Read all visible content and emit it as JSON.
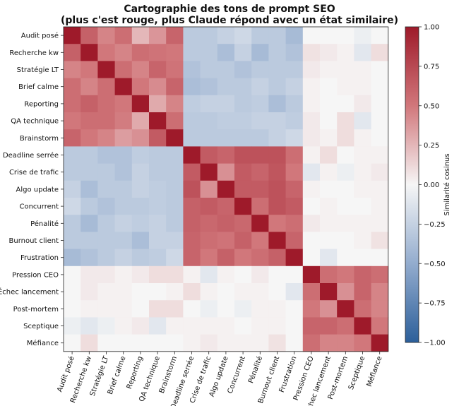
{
  "chart_data": {
    "type": "heatmap",
    "title_line1": "Cartographie des tons de prompt SEO",
    "title_line2": "(plus c'est rouge, plus Claude répond avec un état similaire)",
    "labels": [
      "Audit posé",
      "Recherche kw",
      "Stratégie LT",
      "Brief calme",
      "Reporting",
      "QA technique",
      "Brainstorm",
      "Deadline serrée",
      "Crise de trafic",
      "Algo update",
      "Concurrent",
      "Pénalité",
      "Burnout client",
      "Frustration",
      "Pression CEO",
      "Échec lancement",
      "Post-mortem",
      "Sceptique",
      "Méfiance"
    ],
    "matrix": [
      [
        1.0,
        0.62,
        0.45,
        0.55,
        0.25,
        0.38,
        0.6,
        -0.3,
        -0.3,
        -0.25,
        -0.2,
        -0.3,
        -0.3,
        -0.4,
        0.0,
        0.0,
        0.0,
        -0.05,
        0.0
      ],
      [
        0.62,
        1.0,
        0.5,
        0.45,
        0.55,
        0.52,
        0.5,
        -0.3,
        -0.3,
        -0.38,
        -0.25,
        -0.4,
        -0.3,
        -0.35,
        0.08,
        0.05,
        0.02,
        -0.1,
        0.1
      ],
      [
        0.45,
        0.5,
        1.0,
        0.55,
        0.45,
        0.6,
        0.52,
        -0.35,
        -0.3,
        -0.3,
        -0.35,
        -0.3,
        -0.3,
        -0.3,
        0.05,
        0.02,
        0.02,
        0.02,
        0.0
      ],
      [
        0.55,
        0.45,
        0.55,
        1.0,
        0.5,
        0.42,
        0.6,
        -0.38,
        -0.35,
        -0.3,
        -0.3,
        -0.25,
        -0.3,
        -0.25,
        0.02,
        0.0,
        0.02,
        0.02,
        0.0
      ],
      [
        0.55,
        0.62,
        0.55,
        0.5,
        1.0,
        0.3,
        0.45,
        -0.28,
        -0.25,
        -0.25,
        -0.3,
        -0.28,
        -0.38,
        -0.3,
        0.02,
        0.0,
        0.0,
        0.05,
        0.0
      ],
      [
        0.5,
        0.55,
        0.55,
        0.48,
        0.3,
        1.0,
        0.55,
        -0.3,
        -0.3,
        -0.28,
        -0.28,
        -0.25,
        -0.25,
        -0.28,
        0.05,
        0.0,
        0.1,
        -0.1,
        0.0
      ],
      [
        0.6,
        0.5,
        0.45,
        0.35,
        0.4,
        0.65,
        1.0,
        -0.3,
        -0.3,
        -0.3,
        -0.3,
        -0.3,
        -0.25,
        -0.2,
        0.05,
        0.02,
        0.1,
        0.02,
        0.0
      ],
      [
        -0.3,
        -0.3,
        -0.35,
        -0.35,
        -0.28,
        -0.3,
        -0.3,
        1.0,
        0.65,
        0.6,
        0.7,
        0.7,
        0.7,
        0.55,
        0.02,
        0.1,
        0.0,
        0.02,
        0.02
      ],
      [
        -0.3,
        -0.3,
        -0.3,
        -0.35,
        -0.25,
        -0.3,
        -0.3,
        0.65,
        1.0,
        0.4,
        0.65,
        0.6,
        0.68,
        0.5,
        -0.1,
        0.02,
        -0.05,
        0.02,
        0.05
      ],
      [
        -0.25,
        -0.38,
        -0.3,
        -0.3,
        -0.25,
        -0.28,
        -0.3,
        0.7,
        0.4,
        1.0,
        0.65,
        0.65,
        0.7,
        0.6,
        0.02,
        0.0,
        0.0,
        0.02,
        0.02
      ],
      [
        -0.2,
        -0.3,
        -0.35,
        -0.3,
        -0.3,
        -0.28,
        -0.3,
        0.62,
        0.65,
        0.6,
        1.0,
        0.55,
        0.7,
        0.65,
        0.0,
        0.02,
        0.0,
        0.0,
        0.02
      ],
      [
        -0.3,
        -0.4,
        -0.3,
        -0.25,
        -0.28,
        -0.25,
        -0.3,
        0.62,
        0.58,
        0.62,
        0.58,
        1.0,
        0.5,
        0.55,
        0.05,
        0.02,
        0.02,
        0.02,
        0.02
      ],
      [
        -0.3,
        -0.3,
        -0.3,
        -0.3,
        -0.38,
        -0.25,
        -0.25,
        0.6,
        0.55,
        0.52,
        0.62,
        0.5,
        1.0,
        0.6,
        0.0,
        0.0,
        0.0,
        0.02,
        0.08
      ],
      [
        -0.4,
        -0.35,
        -0.3,
        -0.25,
        -0.3,
        -0.28,
        -0.2,
        0.6,
        0.5,
        0.62,
        0.5,
        0.55,
        0.62,
        1.0,
        0.0,
        -0.1,
        0.0,
        0.0,
        0.0
      ],
      [
        0.0,
        0.05,
        0.05,
        0.02,
        0.05,
        0.1,
        0.1,
        0.02,
        -0.1,
        0.02,
        0.0,
        0.05,
        0.0,
        0.0,
        1.0,
        0.55,
        0.5,
        0.6,
        0.55
      ],
      [
        0.0,
        0.05,
        0.02,
        0.02,
        0.0,
        0.0,
        0.02,
        0.1,
        0.02,
        0.0,
        0.02,
        0.02,
        0.0,
        -0.1,
        0.55,
        1.0,
        0.4,
        0.6,
        0.45
      ],
      [
        0.0,
        0.02,
        0.02,
        0.02,
        0.0,
        0.1,
        0.1,
        0.0,
        -0.05,
        0.0,
        -0.05,
        0.02,
        0.02,
        0.0,
        0.5,
        0.4,
        1.0,
        0.55,
        0.45
      ],
      [
        -0.05,
        -0.1,
        -0.05,
        0.02,
        0.05,
        -0.1,
        0.02,
        0.02,
        0.02,
        0.02,
        0.0,
        0.02,
        0.02,
        0.0,
        0.6,
        0.6,
        0.55,
        1.0,
        0.5
      ],
      [
        0.0,
        0.1,
        0.0,
        0.0,
        0.0,
        0.0,
        0.0,
        0.02,
        0.05,
        0.02,
        0.02,
        0.02,
        0.08,
        0.0,
        0.55,
        0.45,
        0.45,
        0.5,
        1.0
      ]
    ],
    "colorbar": {
      "label": "Similarité cosinus",
      "vmin": -1.0,
      "vmax": 1.0,
      "ticks": [
        "1.00",
        "0.75",
        "0.50",
        "0.25",
        "0.00",
        "−0.25",
        "−0.50",
        "−0.75",
        "−1.00"
      ],
      "tick_values": [
        1.0,
        0.75,
        0.5,
        0.25,
        0.0,
        -0.25,
        -0.5,
        -0.75,
        -1.0
      ],
      "colormap": "RdBu_r",
      "stops": [
        {
          "v": -1.0,
          "color": "#2c5f9a"
        },
        {
          "v": -0.5,
          "color": "#93acce"
        },
        {
          "v": 0.0,
          "color": "#f6f6f6"
        },
        {
          "v": 0.5,
          "color": "#d1777b"
        },
        {
          "v": 1.0,
          "color": "#9e1a2a"
        }
      ]
    }
  }
}
